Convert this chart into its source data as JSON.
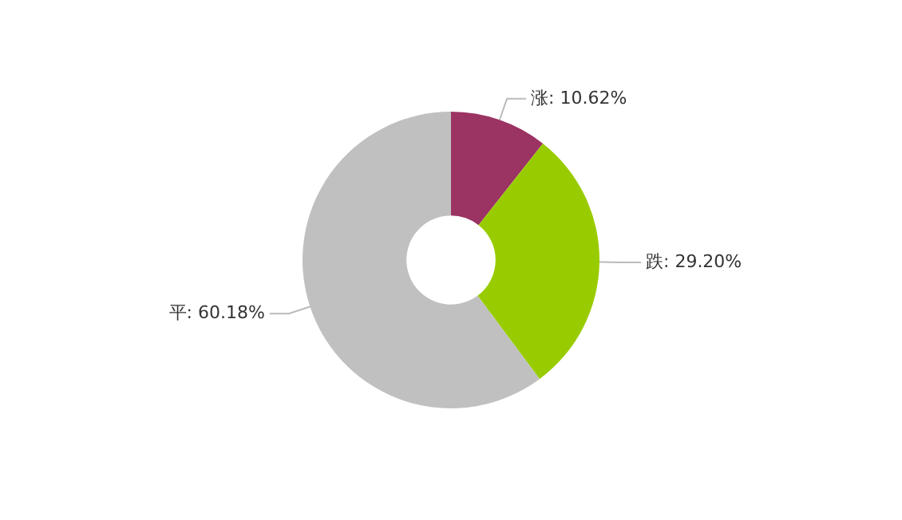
{
  "chart_data": {
    "type": "donut",
    "categories": [
      "涨",
      "跌",
      "平"
    ],
    "values": [
      10.62,
      29.2,
      60.18
    ],
    "colors": [
      "#9b3363",
      "#99cc00",
      "#c0c0c0"
    ],
    "value_labels": [
      "10.62%",
      "29.20%",
      "60.18%"
    ],
    "legend": false
  }
}
